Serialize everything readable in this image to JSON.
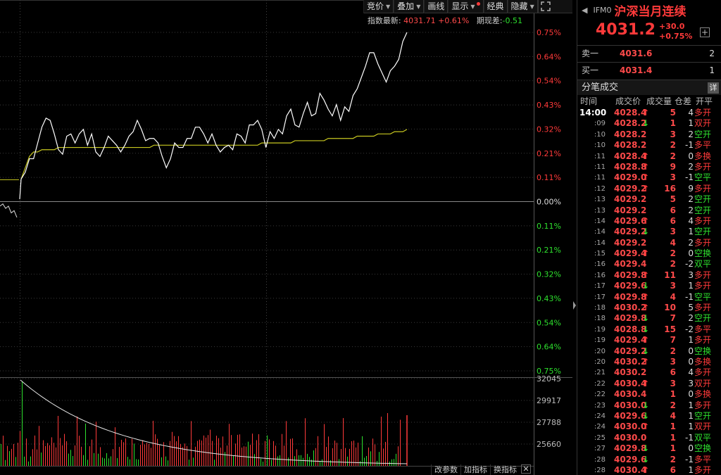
{
  "toolbar": {
    "bid_label": "竞价",
    "overlay_label": "叠加",
    "draw_label": "画线",
    "display_label": "显示",
    "classic_label": "经典",
    "hide_label": "隐藏"
  },
  "infoline": {
    "index_label": "指数最新:",
    "index_value": "4031.71",
    "index_pct": "+0.61%",
    "basis_label": "期现差:",
    "basis_value": "-0.51"
  },
  "bottom": {
    "params_label": "改参数",
    "add_indicator_label": "加指标",
    "swap_indicator_label": "换指标",
    "close_label": "✕"
  },
  "panel": {
    "back_glyph": "◀",
    "code": "IFM0",
    "name": "沪深当月连续",
    "price": "4031.2",
    "change": "+30.0",
    "change_pct": "+0.75%",
    "add_glyph": "+",
    "ask_label": "卖一",
    "ask_price": "4031.6",
    "ask_vol": "2",
    "bid_label": "买一",
    "bid_price": "4031.4",
    "bid_vol": "1",
    "ticks_title": "分笔成交",
    "ticks_detail": "详",
    "col_time": "时间",
    "col_price": "成交价",
    "col_vol": "成交量",
    "col_oi": "仓差",
    "col_type": "开平"
  },
  "ticks": [
    {
      "t": "14:00",
      "p": "4028.4",
      "a": "up",
      "v": "5",
      "oi": "4",
      "ty": "多开"
    },
    {
      "t": ":09",
      "p": "4028.2",
      "a": "down",
      "v": "1",
      "oi": "1",
      "ty": "双开"
    },
    {
      "t": ":10",
      "p": "4028.2",
      "a": "",
      "v": "3",
      "oi": "2",
      "ty": "空开"
    },
    {
      "t": ":10",
      "p": "4028.2",
      "a": "",
      "v": "2",
      "oi": "-1",
      "ty": "多平"
    },
    {
      "t": ":11",
      "p": "4028.4",
      "a": "up",
      "v": "2",
      "oi": "0",
      "ty": "多换"
    },
    {
      "t": ":11",
      "p": "4028.8",
      "a": "up",
      "v": "9",
      "oi": "2",
      "ty": "多开"
    },
    {
      "t": ":11",
      "p": "4029.0",
      "a": "up",
      "v": "3",
      "oi": "-1",
      "ty": "空平"
    },
    {
      "t": ":12",
      "p": "4029.2",
      "a": "up",
      "v": "16",
      "oi": "9",
      "ty": "多开"
    },
    {
      "t": ":13",
      "p": "4029.2",
      "a": "",
      "v": "5",
      "oi": "2",
      "ty": "空开"
    },
    {
      "t": ":13",
      "p": "4029.2",
      "a": "",
      "v": "6",
      "oi": "2",
      "ty": "空开"
    },
    {
      "t": ":14",
      "p": "4029.6",
      "a": "up",
      "v": "6",
      "oi": "4",
      "ty": "多开"
    },
    {
      "t": ":14",
      "p": "4029.2",
      "a": "down",
      "v": "3",
      "oi": "1",
      "ty": "空开"
    },
    {
      "t": ":14",
      "p": "4029.2",
      "a": "",
      "v": "4",
      "oi": "2",
      "ty": "多开"
    },
    {
      "t": ":15",
      "p": "4029.4",
      "a": "up",
      "v": "2",
      "oi": "0",
      "ty": "空换"
    },
    {
      "t": ":16",
      "p": "4029.4",
      "a": "",
      "v": "2",
      "oi": "-2",
      "ty": "双平"
    },
    {
      "t": ":16",
      "p": "4029.8",
      "a": "up",
      "v": "11",
      "oi": "3",
      "ty": "多开"
    },
    {
      "t": ":17",
      "p": "4029.6",
      "a": "down",
      "v": "3",
      "oi": "1",
      "ty": "多开"
    },
    {
      "t": ":17",
      "p": "4029.8",
      "a": "up",
      "v": "4",
      "oi": "-1",
      "ty": "空平"
    },
    {
      "t": ":18",
      "p": "4030.2",
      "a": "up",
      "v": "10",
      "oi": "5",
      "ty": "多开"
    },
    {
      "t": ":18",
      "p": "4029.8",
      "a": "down",
      "v": "7",
      "oi": "2",
      "ty": "空开"
    },
    {
      "t": ":19",
      "p": "4028.8",
      "a": "down",
      "v": "15",
      "oi": "-2",
      "ty": "多平"
    },
    {
      "t": ":19",
      "p": "4029.4",
      "a": "up",
      "v": "7",
      "oi": "1",
      "ty": "多开"
    },
    {
      "t": ":20",
      "p": "4029.2",
      "a": "down",
      "v": "2",
      "oi": "0",
      "ty": "空换"
    },
    {
      "t": ":20",
      "p": "4030.2",
      "a": "up",
      "v": "3",
      "oi": "0",
      "ty": "多换"
    },
    {
      "t": ":21",
      "p": "4030.2",
      "a": "",
      "v": "6",
      "oi": "4",
      "ty": "多开"
    },
    {
      "t": ":22",
      "p": "4030.4",
      "a": "up",
      "v": "3",
      "oi": "3",
      "ty": "双开"
    },
    {
      "t": ":22",
      "p": "4030.4",
      "a": "",
      "v": "1",
      "oi": "0",
      "ty": "多换"
    },
    {
      "t": ":23",
      "p": "4030.0",
      "a": "down",
      "v": "2",
      "oi": "1",
      "ty": "多开"
    },
    {
      "t": ":24",
      "p": "4029.6",
      "a": "down",
      "v": "4",
      "oi": "1",
      "ty": "空开"
    },
    {
      "t": ":24",
      "p": "4030.0",
      "a": "up",
      "v": "1",
      "oi": "1",
      "ty": "双开"
    },
    {
      "t": ":25",
      "p": "4030.0",
      "a": "",
      "v": "1",
      "oi": "-1",
      "ty": "双平"
    },
    {
      "t": ":27",
      "p": "4029.8",
      "a": "down",
      "v": "1",
      "oi": "0",
      "ty": "空换"
    },
    {
      "t": ":28",
      "p": "4029.6",
      "a": "down",
      "v": "2",
      "oi": "-1",
      "ty": "多平"
    },
    {
      "t": ":28",
      "p": "4030.4",
      "a": "up",
      "v": "6",
      "oi": "1",
      "ty": "多开"
    }
  ],
  "colors": {
    "up": "#ff3a3a",
    "down": "#2ee02e",
    "price_line": "#ffffff",
    "avg_line": "#c8c820",
    "grid": "#3a3a3a"
  },
  "chart_data": {
    "type": "line",
    "price_axis_labels": [
      "0.75%",
      "0.64%",
      "0.54%",
      "0.43%",
      "0.32%",
      "0.21%",
      "0.11%",
      "0.00%",
      "0.11%",
      "0.21%",
      "0.32%",
      "0.43%",
      "0.54%",
      "0.64%",
      "0.75%"
    ],
    "pct_range": [
      -0.75,
      0.75
    ],
    "volume_axis_labels": [
      "32045",
      "29917",
      "27788",
      "25660"
    ],
    "volume_range": [
      23532,
      32045
    ],
    "price_pct": [
      0.1,
      0.13,
      0.19,
      0.19,
      0.26,
      0.33,
      0.37,
      0.36,
      0.3,
      0.23,
      0.21,
      0.29,
      0.3,
      0.26,
      0.3,
      0.32,
      0.25,
      0.3,
      0.22,
      0.2,
      0.24,
      0.29,
      0.27,
      0.25,
      0.22,
      0.25,
      0.29,
      0.31,
      0.36,
      0.32,
      0.27,
      0.28,
      0.28,
      0.26,
      0.2,
      0.15,
      0.19,
      0.26,
      0.24,
      0.24,
      0.28,
      0.28,
      0.33,
      0.33,
      0.3,
      0.26,
      0.3,
      0.25,
      0.22,
      0.24,
      0.25,
      0.23,
      0.3,
      0.29,
      0.26,
      0.34,
      0.34,
      0.36,
      0.32,
      0.24,
      0.31,
      0.28,
      0.32,
      0.3,
      0.38,
      0.41,
      0.34,
      0.33,
      0.39,
      0.44,
      0.38,
      0.39,
      0.48,
      0.45,
      0.41,
      0.38,
      0.43,
      0.36,
      0.42,
      0.4,
      0.47,
      0.5,
      0.55,
      0.6,
      0.66,
      0.66,
      0.61,
      0.57,
      0.53,
      0.58,
      0.6,
      0.63,
      0.71,
      0.75
    ],
    "avg_pct": [
      0.1,
      0.15,
      0.2,
      0.22,
      0.22,
      0.23,
      0.23,
      0.23,
      0.23,
      0.24,
      0.24,
      0.24,
      0.24,
      0.24,
      0.24,
      0.24,
      0.24,
      0.24,
      0.24,
      0.24,
      0.24,
      0.24,
      0.24,
      0.24,
      0.24,
      0.24,
      0.24,
      0.24,
      0.24,
      0.24,
      0.24,
      0.24,
      0.25,
      0.25,
      0.25,
      0.25,
      0.25,
      0.25,
      0.25,
      0.25,
      0.25,
      0.25,
      0.25,
      0.25,
      0.25,
      0.25,
      0.25,
      0.25,
      0.25,
      0.25,
      0.25,
      0.25,
      0.25,
      0.25,
      0.25,
      0.25,
      0.25,
      0.25,
      0.26,
      0.26,
      0.26,
      0.26,
      0.26,
      0.26,
      0.26,
      0.26,
      0.27,
      0.27,
      0.27,
      0.27,
      0.27,
      0.27,
      0.27,
      0.27,
      0.28,
      0.28,
      0.28,
      0.28,
      0.28,
      0.28,
      0.28,
      0.29,
      0.29,
      0.29,
      0.29,
      0.29,
      0.3,
      0.3,
      0.3,
      0.3,
      0.31,
      0.31,
      0.31,
      0.32
    ],
    "prev_session_pct": [
      -0.02,
      -0.01,
      -0.03,
      -0.02,
      -0.05,
      -0.04,
      -0.07
    ]
  }
}
